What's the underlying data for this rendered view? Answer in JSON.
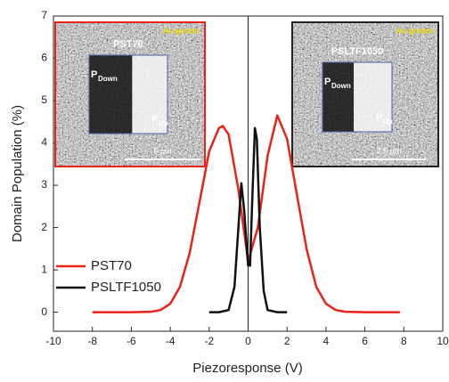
{
  "chart_data": {
    "type": "line",
    "xlabel": "Piezoresponse (V)",
    "ylabel": "Domain Population (%)",
    "xlim": [
      -10,
      10
    ],
    "ylim": [
      -0.45,
      7
    ],
    "xticks": [
      -10,
      -8,
      -6,
      -4,
      -2,
      0,
      2,
      4,
      6,
      8,
      10
    ],
    "yticks": [
      0,
      1,
      2,
      3,
      4,
      5,
      6,
      7
    ],
    "legend": "lower left",
    "series": [
      {
        "name": "PST70",
        "color": "#e8231a",
        "x": [
          -8,
          -6,
          -5,
          -4.5,
          -4,
          -3.5,
          -3,
          -2.5,
          -2,
          -1.5,
          -1.3,
          -1,
          -0.5,
          0,
          0.5,
          1,
          1.5,
          2,
          2.5,
          3,
          3.5,
          4,
          4.5,
          5,
          6,
          7.8
        ],
        "values": [
          0,
          0,
          0.01,
          0.05,
          0.2,
          0.6,
          1.4,
          2.6,
          3.8,
          4.35,
          4.4,
          4.2,
          2.9,
          1.2,
          2.0,
          3.7,
          4.65,
          4.1,
          2.8,
          1.5,
          0.6,
          0.2,
          0.05,
          0.01,
          0,
          0
        ]
      },
      {
        "name": "PSLTF1050",
        "color": "#111111",
        "x": [
          -2,
          -1.5,
          -1,
          -0.7,
          -0.5,
          -0.35,
          -0.2,
          0,
          0.1,
          0.2,
          0.35,
          0.45,
          0.6,
          0.8,
          1,
          1.5,
          2
        ],
        "values": [
          0,
          0,
          0.05,
          0.6,
          2.0,
          3.05,
          2.4,
          1.1,
          1.1,
          2.5,
          4.35,
          4.1,
          2.0,
          0.5,
          0.05,
          0,
          0
        ]
      }
    ],
    "insets": [
      {
        "tag": "As-grown",
        "title": "PST70",
        "down": {
          "text": "P",
          "sub": "Down"
        },
        "up": {
          "text": "P",
          "sub": "Up"
        },
        "scale": "5 µm"
      },
      {
        "tag": "As-grown",
        "title": "PSLTF1050",
        "down": {
          "text": "P",
          "sub": "Down"
        },
        "up": {
          "text": "P",
          "sub": "Up"
        },
        "scale": "2.5 µm"
      }
    ]
  }
}
